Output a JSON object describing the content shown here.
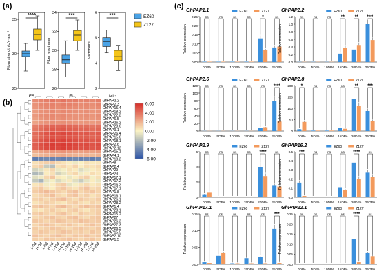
{
  "panel_labels": [
    "(a)",
    "(b)",
    "(c)"
  ],
  "colors": {
    "EZ60": "#3a8fdc",
    "Z127": "#f39a5c",
    "box_EZ60": "#4aa3e6",
    "box_Z127": "#f5c518",
    "heat_high": "#d7302b",
    "heat_mid": "#fbf3c4",
    "heat_low": "#2c54a8"
  },
  "chart_data": [
    {
      "type": "box",
      "panel": "(a)",
      "legend": [
        "EZ60",
        "Z127"
      ],
      "subplots": [
        {
          "xlabel": "FS",
          "ylabel": "Fibre strength/cN·tex⁻¹",
          "ylim": [
            25,
            36
          ],
          "yticks": [
            25,
            30,
            35
          ],
          "sig": "****",
          "EZ60": {
            "min": 27.5,
            "q1": 29.6,
            "median": 30.0,
            "q3": 30.4,
            "max": 31.5
          },
          "Z127": {
            "min": 30.5,
            "q1": 32.0,
            "median": 32.8,
            "q3": 33.6,
            "max": 35.5
          }
        },
        {
          "xlabel": "FL",
          "ylabel": "Fiber length/mm",
          "ylim": [
            26,
            34
          ],
          "yticks": [
            26,
            28,
            30,
            32,
            34
          ],
          "sig": "***",
          "EZ60": {
            "min": 27.2,
            "q1": 28.6,
            "median": 29.0,
            "q3": 29.5,
            "max": 31.0
          },
          "Z127": {
            "min": 30.0,
            "q1": 31.0,
            "median": 31.6,
            "q3": 32.1,
            "max": 33.2
          }
        },
        {
          "xlabel": "Mic",
          "ylabel": "Micronaire",
          "ylim": [
            3,
            6
          ],
          "yticks": [
            3,
            4,
            5,
            6
          ],
          "sig": "***",
          "EZ60": {
            "min": 4.4,
            "q1": 4.65,
            "median": 4.85,
            "q3": 5.0,
            "max": 5.3
          },
          "Z127": {
            "min": 3.7,
            "q1": 4.1,
            "median": 4.25,
            "q3": 4.5,
            "max": 4.7
          }
        }
      ]
    },
    {
      "type": "heatmap",
      "panel": "(b)",
      "columns": [
        "L-0d",
        "H-0d",
        "L-5d",
        "H-5d",
        "L-10d",
        "H-10d",
        "L-15d",
        "H-15d",
        "L-20d",
        "H-20d",
        "L-25d",
        "H-25d"
      ],
      "colorbar": {
        "ticks": [
          "6.00",
          "4.00",
          "2.00",
          "0.00",
          "-2.00",
          "-4.00",
          "-6.00"
        ],
        "range": [
          -6,
          6
        ]
      },
      "rows": [
        "GhPAP2.2",
        "GhPAP2.3",
        "GhPAP15.4",
        "GhPAP18.2",
        "GhPAP22.2",
        "GhPAP6.5",
        "GhPAP26.2",
        "GhPAP28.6",
        "GhPAP9.1",
        "GhPAP26.4",
        "GhPAP15.6",
        "GhPAP18.1",
        "GhPAP2.6",
        "GhPAP2.12",
        "GhPAP15.1",
        "GhPAP4.1",
        "GhPAP18.2",
        "GhPAP8",
        "GhPAP2.4",
        "GhPAP29",
        "GhPAP23",
        "GhPAP17.1",
        "GhPAP17.2",
        "GhPAP16.2",
        "GhPAP17.1",
        "GhPAP1.8",
        "GhPAP16.1",
        "GhPAP26.1",
        "GhPAP28.2",
        "GhPAP1.4",
        "GhPAP28.1",
        "GhPAP15.2",
        "GhPAP27",
        "GhPAP26.3",
        "GhPAP27.3",
        "GhPAP26.5",
        "GhPAP15.5",
        "GhPAP2.10",
        "GhPAP1.5"
      ],
      "values": [
        [
          3.2,
          3.4,
          3.6,
          3.8,
          3.5,
          3.9,
          3.6,
          3.7,
          3.4,
          3.5,
          3.3,
          3.6
        ],
        [
          3.0,
          3.3,
          3.4,
          3.5,
          3.3,
          3.6,
          3.5,
          3.4,
          3.2,
          3.3,
          3.1,
          3.4
        ],
        [
          2.9,
          3.1,
          3.3,
          3.4,
          3.2,
          3.4,
          3.3,
          3.2,
          3.1,
          3.2,
          3.0,
          3.2
        ],
        [
          2.7,
          3.0,
          3.1,
          3.3,
          3.0,
          3.3,
          3.2,
          3.1,
          3.0,
          3.1,
          2.9,
          3.0
        ],
        [
          2.8,
          3.1,
          3.2,
          3.3,
          3.1,
          3.3,
          3.1,
          3.0,
          3.0,
          3.1,
          2.9,
          3.1
        ],
        [
          2.6,
          2.9,
          3.1,
          3.2,
          3.0,
          3.2,
          3.0,
          3.0,
          2.9,
          3.0,
          2.8,
          3.0
        ],
        [
          2.5,
          2.8,
          3.0,
          3.1,
          3.0,
          3.1,
          3.0,
          2.9,
          2.8,
          2.9,
          2.7,
          2.9
        ],
        [
          3.6,
          3.9,
          4.2,
          4.4,
          4.3,
          4.5,
          4.3,
          4.2,
          4.0,
          4.1,
          3.8,
          4.0
        ],
        [
          3.8,
          4.1,
          4.5,
          4.7,
          4.6,
          4.8,
          4.6,
          4.5,
          4.3,
          4.4,
          4.1,
          4.3
        ],
        [
          4.2,
          4.5,
          4.9,
          5.2,
          5.0,
          5.3,
          5.1,
          4.9,
          4.7,
          4.8,
          4.5,
          4.7
        ],
        [
          4.0,
          4.3,
          4.7,
          4.9,
          4.8,
          5.0,
          4.8,
          4.7,
          4.5,
          4.6,
          4.3,
          4.5
        ],
        [
          4.4,
          4.8,
          5.1,
          5.4,
          5.2,
          5.5,
          5.3,
          5.1,
          4.9,
          5.0,
          4.7,
          4.9
        ],
        [
          4.6,
          5.0,
          5.3,
          5.6,
          5.4,
          5.7,
          5.5,
          5.3,
          5.1,
          5.2,
          4.9,
          5.1
        ],
        [
          4.5,
          4.9,
          5.2,
          5.5,
          5.3,
          5.6,
          5.4,
          5.2,
          5.0,
          5.1,
          4.8,
          5.0
        ],
        [
          2.2,
          2.5,
          2.7,
          2.9,
          2.8,
          3.0,
          2.8,
          2.7,
          2.6,
          2.7,
          2.5,
          2.7
        ],
        [
          1.6,
          1.9,
          2.1,
          2.2,
          2.1,
          2.3,
          2.1,
          2.0,
          1.9,
          2.0,
          1.8,
          2.0
        ],
        [
          -4.5,
          -4.2,
          -4.0,
          -4.3,
          -4.1,
          -4.4,
          -4.2,
          -4.0,
          -4.3,
          -4.1,
          -4.5,
          -4.2
        ],
        [
          0.6,
          0.9,
          1.1,
          1.3,
          0.8,
          0.5,
          0.2,
          -0.4,
          0.1,
          0.6,
          0.3,
          0.4
        ],
        [
          0.8,
          1.2,
          -1.5,
          -2.0,
          0.6,
          0.9,
          0.4,
          1.0,
          0.2,
          0.7,
          0.5,
          0.8
        ],
        [
          -1.2,
          -0.8,
          0.4,
          0.9,
          -0.5,
          -0.2,
          0.6,
          0.3,
          -0.9,
          -0.4,
          0.2,
          0.5
        ],
        [
          -2.2,
          -1.8,
          0.2,
          0.6,
          -1.2,
          -0.6,
          0.5,
          0.9,
          -0.3,
          0.2,
          0.7,
          0.4
        ],
        [
          -0.8,
          -0.4,
          0.9,
          1.4,
          0.3,
          0.1,
          -0.5,
          0.2,
          0.8,
          1.1,
          -0.2,
          0.6
        ],
        [
          -1.6,
          -2.4,
          -0.6,
          -0.2,
          -1.0,
          -0.4,
          0.3,
          -0.8,
          -1.5,
          -0.6,
          0.2,
          -0.5
        ],
        [
          0.4,
          0.7,
          -0.3,
          0.2,
          0.9,
          1.2,
          -0.6,
          -0.2,
          0.5,
          0.8,
          0.3,
          0.6
        ],
        [
          0.9,
          1.3,
          0.6,
          0.2,
          1.0,
          1.4,
          0.8,
          0.5,
          1.1,
          1.5,
          0.7,
          1.0
        ],
        [
          1.2,
          1.5,
          1.8,
          1.4,
          1.1,
          0.8,
          1.3,
          1.6,
          0.9,
          1.2,
          1.4,
          1.0
        ],
        [
          0.7,
          1.0,
          1.3,
          1.6,
          0.9,
          0.6,
          1.2,
          1.5,
          0.8,
          1.1,
          0.5,
          0.9
        ],
        [
          1.0,
          1.2,
          0.8,
          1.1,
          1.4,
          1.7,
          1.0,
          0.7,
          1.3,
          1.0,
          0.8,
          1.2
        ],
        [
          0.5,
          0.8,
          1.1,
          0.9,
          0.6,
          0.4,
          0.9,
          1.2,
          0.7,
          0.5,
          1.0,
          0.8
        ],
        [
          1.3,
          1.6,
          1.2,
          0.9,
          1.5,
          1.8,
          1.1,
          0.8,
          1.4,
          1.7,
          1.2,
          1.5
        ],
        [
          0.6,
          0.4,
          0.9,
          1.2,
          0.8,
          0.5,
          1.0,
          1.3,
          0.7,
          0.4,
          0.9,
          1.1
        ],
        [
          1.1,
          1.4,
          1.0,
          0.7,
          1.2,
          1.5,
          0.9,
          0.6,
          1.3,
          1.0,
          0.8,
          1.2
        ],
        [
          0.8,
          1.0,
          1.3,
          1.5,
          1.1,
          0.9,
          1.4,
          1.6,
          1.0,
          0.8,
          1.2,
          1.4
        ],
        [
          1.4,
          1.2,
          0.9,
          1.1,
          1.5,
          1.3,
          1.0,
          1.2,
          1.6,
          1.4,
          1.1,
          1.3
        ],
        [
          0.9,
          1.3,
          1.5,
          1.2,
          0.8,
          1.1,
          1.4,
          1.0,
          0.7,
          1.2,
          1.5,
          1.1
        ],
        [
          1.2,
          0.9,
          1.1,
          1.4,
          1.3,
          1.0,
          0.8,
          1.2,
          1.4,
          1.1,
          0.9,
          1.3
        ],
        [
          1.0,
          1.4,
          1.2,
          0.9,
          1.1,
          1.5,
          1.3,
          1.0,
          1.2,
          0.9,
          1.4,
          1.1
        ],
        [
          1.5,
          1.2,
          1.0,
          1.3,
          1.6,
          1.1,
          0.9,
          1.4,
          1.2,
          1.5,
          1.0,
          1.3
        ],
        [
          1.1,
          0.9,
          1.4,
          1.2,
          1.0,
          1.3,
          1.5,
          1.1,
          0.9,
          1.2,
          1.4,
          1.0
        ]
      ]
    },
    {
      "type": "bar",
      "panel": "(c)",
      "categories": [
        "0DPA",
        "5DPA",
        "10DPA",
        "15DPA",
        "20DPA",
        "25DPA"
      ],
      "legend": [
        "EZ60",
        "Z127"
      ],
      "ylabel": "Relative expression",
      "subplots": [
        {
          "title": "GhPAP1.1",
          "ylim": [
            0,
            0.25
          ],
          "yticks": [
            "0.00",
            "0.05",
            "0.10",
            "0.15",
            "0.20",
            "0.25"
          ],
          "EZ60": [
            0.002,
            0.002,
            0.002,
            0.002,
            0.13,
            0.08
          ],
          "Z127": [
            0.002,
            0.002,
            0.002,
            0.002,
            0.065,
            0.085
          ],
          "sig": [
            "ns",
            "ns",
            "ns",
            "ns",
            "*",
            "ns"
          ]
        },
        {
          "title": "GhPAP2.2",
          "ylim": [
            0,
            1.2
          ],
          "yticks": [
            "0.0",
            "0.2",
            "0.4",
            "0.6",
            "0.8",
            "1.0",
            "1.2"
          ],
          "EZ60": [
            0.005,
            0.005,
            0.005,
            0.22,
            0.33,
            1.0
          ],
          "Z127": [
            0.005,
            0.005,
            0.005,
            0.38,
            0.45,
            0.58
          ],
          "sig": [
            "ns",
            "ns",
            "ns",
            "**",
            "**",
            "****"
          ]
        },
        {
          "title": "GhPAP2.6",
          "ylim": [
            0,
            120
          ],
          "yticks": [
            "0",
            "20",
            "40",
            "60",
            "80",
            "100",
            "120"
          ],
          "EZ60": [
            0.3,
            0.3,
            0.3,
            0.3,
            8,
            80
          ],
          "Z127": [
            0.3,
            0.3,
            0.3,
            0.3,
            10,
            25
          ],
          "sig": [
            "ns",
            "ns",
            "ns",
            "ns",
            "ns",
            "****"
          ]
        },
        {
          "title": "GhPAP2.8",
          "ylim": [
            0,
            200
          ],
          "yticks": [
            "0",
            "50",
            "100",
            "150",
            "200"
          ],
          "EZ60": [
            8,
            2,
            2,
            15,
            140,
            88
          ],
          "Z127": [
            40,
            2,
            2,
            10,
            110,
            45
          ],
          "sig": [
            "*",
            "ns",
            "ns",
            "ns",
            "**",
            "***"
          ]
        },
        {
          "title": "GhPAP2.9",
          "ylim": [
            0,
            6
          ],
          "yticks": [
            "0",
            "2",
            "4",
            "6"
          ],
          "EZ60": [
            0.4,
            0.08,
            0.08,
            0.08,
            4.0,
            1.6
          ],
          "Z127": [
            0.6,
            0.08,
            0.08,
            0.08,
            2.8,
            1.4
          ],
          "sig": [
            "ns",
            "ns",
            "ns",
            "ns",
            "****",
            "ns"
          ]
        },
        {
          "title": "GhPAP16.2",
          "ylim": [
            0,
            0.5
          ],
          "yticks": [
            "0.0",
            "0.1",
            "0.2",
            "0.3",
            "0.4",
            "0.5"
          ],
          "EZ60": [
            0.16,
            0.003,
            0.003,
            0.11,
            0.38,
            0.27
          ],
          "Z127": [
            0.015,
            0.003,
            0.003,
            0.08,
            0.2,
            0.22
          ],
          "sig": [
            "***",
            "ns",
            "ns",
            "ns",
            "****",
            "ns"
          ]
        },
        {
          "title": "GhPAP17.1",
          "ylim": [
            0,
            0.15
          ],
          "yticks": [
            "0.00",
            "0.05",
            "0.10",
            "0.15"
          ],
          "EZ60": [
            0.006,
            0.025,
            0.003,
            0.018,
            0.022,
            0.105
          ],
          "Z127": [
            0.004,
            0.033,
            0.003,
            0.003,
            0.003,
            0.004
          ],
          "sig": [
            "ns",
            "ns",
            "ns",
            "ns",
            "ns",
            "***"
          ]
        },
        {
          "title": "GhPAP22.1",
          "ylim": [
            0,
            0.25
          ],
          "yticks": [
            "0.00",
            "0.05",
            "0.10",
            "0.15",
            "0.20",
            "0.25"
          ],
          "EZ60": [
            0.002,
            0.002,
            0.002,
            0.002,
            0.125,
            0.055
          ],
          "Z127": [
            0.002,
            0.002,
            0.002,
            0.002,
            0.01,
            0.04
          ],
          "sig": [
            "ns",
            "ns",
            "ns",
            "ns",
            "****",
            "ns"
          ]
        }
      ]
    }
  ]
}
